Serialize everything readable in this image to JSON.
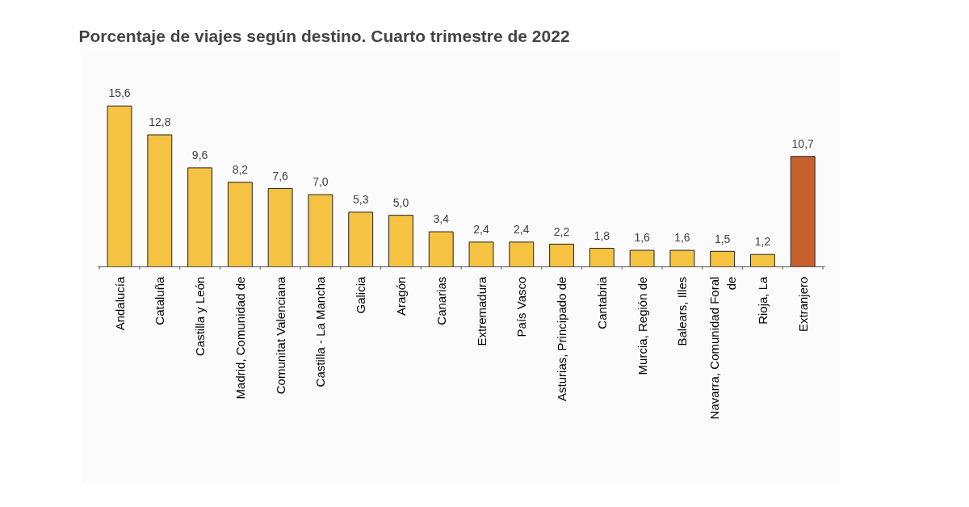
{
  "chart_data": {
    "type": "bar",
    "title": "Porcentaje de viajes según destino. Cuarto trimestre de 2022",
    "categories": [
      "Andalucía",
      "Cataluña",
      "Castilla y León",
      "Madrid, Comunidad de",
      "Comunitat Valenciana",
      "Castilla - La Mancha",
      "Galicia",
      "Aragón",
      "Canarias",
      "Extremadura",
      "País Vasco",
      "Asturias, Principado de",
      "Cantabria",
      "Murcia, Región de",
      "Balears, Illes",
      "Navarra, Comunidad Foral de",
      "Rioja, La",
      "Extranjero"
    ],
    "values": [
      15.6,
      12.8,
      9.6,
      8.2,
      7.6,
      7.0,
      5.3,
      5.0,
      3.4,
      2.4,
      2.4,
      2.2,
      1.8,
      1.6,
      1.6,
      1.5,
      1.2,
      10.7
    ],
    "value_labels": [
      "15,6",
      "12,8",
      "9,6",
      "8,2",
      "7,6",
      "7,0",
      "5,3",
      "5,0",
      "3,4",
      "2,4",
      "2,4",
      "2,2",
      "1,8",
      "1,6",
      "1,6",
      "1,5",
      "1,2",
      "10,7"
    ],
    "colors": [
      "#f5c242",
      "#f5c242",
      "#f5c242",
      "#f5c242",
      "#f5c242",
      "#f5c242",
      "#f5c242",
      "#f5c242",
      "#f5c242",
      "#f5c242",
      "#f5c242",
      "#f5c242",
      "#f5c242",
      "#f5c242",
      "#f5c242",
      "#f5c242",
      "#f5c242",
      "#c8602e"
    ]
  }
}
